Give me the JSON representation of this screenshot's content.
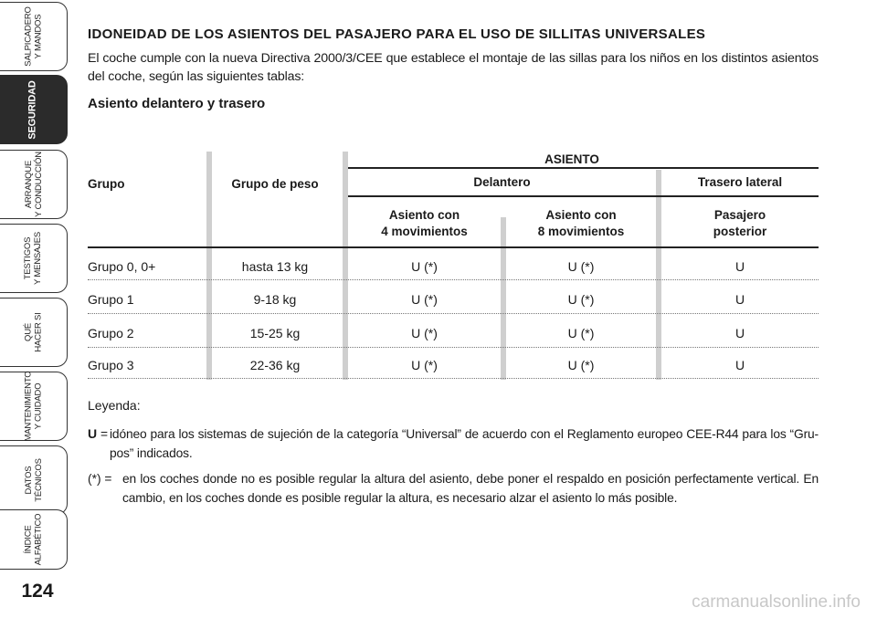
{
  "sidebar": {
    "tabs": [
      {
        "label": "SALPICADERO\nY MANDOS",
        "active": false
      },
      {
        "label": "SEGURIDAD",
        "active": true
      },
      {
        "label": "ARRANQUE\nY CONDUCCIÓN",
        "active": false
      },
      {
        "label": "TESTIGOS\nY MENSAJES",
        "active": false
      },
      {
        "label": "QUÉ\nHACER SI",
        "active": false
      },
      {
        "label": "MANTENIMIENTO\nY CUIDADO",
        "active": false
      },
      {
        "label": "DATOS\nTÉCNICOS",
        "active": false
      },
      {
        "label": "ÍNDICE\nALFABÉTICO",
        "active": false
      }
    ],
    "page_number": "124"
  },
  "document": {
    "title": "IDONEIDAD DE LOS ASIENTOS DEL PASAJERO PARA EL USO DE SILLITAS UNIVERSALES",
    "intro": "El coche cumple con la nueva Directiva 2000/3/CEE que establece el montaje de las sillas para los niños en los distintos asientos del coche, según las siguientes tablas:",
    "subtitle": "Asiento delantero y trasero"
  },
  "table": {
    "header_asiento": "ASIENTO",
    "header_grupo": "Grupo",
    "header_grupo_peso": "Grupo de peso",
    "header_delantero": "Delantero",
    "header_trasero": "Trasero lateral",
    "header_4mov": "Asiento con\n4 movimientos",
    "header_8mov": "Asiento con\n8 movimientos",
    "header_pasajero": "Pasajero\nposterior",
    "rows": [
      {
        "grupo": "Grupo 0, 0+",
        "peso": "hasta 13 kg",
        "mov4": "U (*)",
        "mov8": "U (*)",
        "trasero": "U"
      },
      {
        "grupo": "Grupo 1",
        "peso": "9-18 kg",
        "mov4": "U (*)",
        "mov8": "U (*)",
        "trasero": "U"
      },
      {
        "grupo": "Grupo 2",
        "peso": "15-25 kg",
        "mov4": "U (*)",
        "mov8": "U (*)",
        "trasero": "U"
      },
      {
        "grupo": "Grupo 3",
        "peso": "22-36 kg",
        "mov4": "U (*)",
        "mov8": "U (*)",
        "trasero": "U"
      }
    ]
  },
  "legend": {
    "title": "Leyenda:",
    "u_symbol": "U",
    "u_eq": " =",
    "u_text": "idóneo para los sistemas de sujeción de la categoría “Universal” de acuerdo con el Reglamento europeo CEE-R44 para los “Gru-pos” indicados.",
    "star_symbol": "(*) =",
    "star_text": "en los coches donde no es posible regular la altura del asiento, debe poner el respaldo en posición perfectamente vertical. En cambio, en los coches donde es posible regular la altura, es necesario alzar el asiento lo más posible."
  },
  "watermark": "carmanualsonline.info"
}
